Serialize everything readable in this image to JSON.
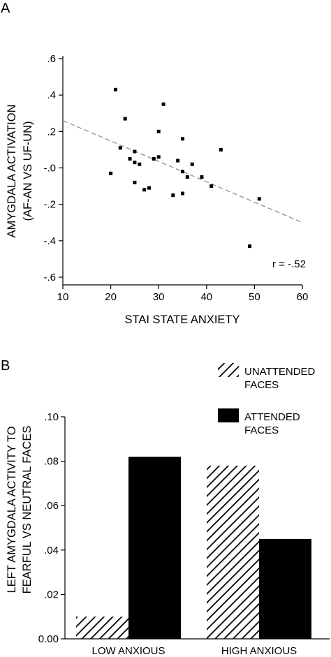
{
  "chart_data": [
    {
      "type": "scatter",
      "panel_label": "A",
      "xlabel": "STAI STATE ANXIETY",
      "ylabel_lines": [
        "AMYGDALA ACTIVATION",
        "(AF-AN VS UF-UN)"
      ],
      "xlim": [
        10,
        60
      ],
      "ylim": [
        -0.6,
        0.6
      ],
      "x_ticks": [
        "10",
        "20",
        "30",
        "40",
        "50",
        "60"
      ],
      "y_ticks": [
        ".6",
        ".4",
        ".2",
        "-.0",
        "-.2",
        "-.4",
        "-.6"
      ],
      "points": [
        {
          "x": 20,
          "y": -0.03
        },
        {
          "x": 21,
          "y": 0.43
        },
        {
          "x": 22,
          "y": 0.11
        },
        {
          "x": 23,
          "y": 0.27
        },
        {
          "x": 24,
          "y": 0.05
        },
        {
          "x": 25,
          "y": 0.09
        },
        {
          "x": 25,
          "y": 0.03
        },
        {
          "x": 25,
          "y": -0.08
        },
        {
          "x": 26,
          "y": 0.02
        },
        {
          "x": 27,
          "y": -0.12
        },
        {
          "x": 28,
          "y": -0.11
        },
        {
          "x": 29,
          "y": 0.05
        },
        {
          "x": 30,
          "y": 0.2
        },
        {
          "x": 30,
          "y": 0.06
        },
        {
          "x": 31,
          "y": 0.35
        },
        {
          "x": 33,
          "y": -0.15
        },
        {
          "x": 34,
          "y": 0.04
        },
        {
          "x": 35,
          "y": 0.16
        },
        {
          "x": 35,
          "y": -0.02
        },
        {
          "x": 35,
          "y": -0.14
        },
        {
          "x": 36,
          "y": -0.05
        },
        {
          "x": 37,
          "y": 0.02
        },
        {
          "x": 39,
          "y": -0.05
        },
        {
          "x": 41,
          "y": -0.1
        },
        {
          "x": 43,
          "y": 0.1
        },
        {
          "x": 49,
          "y": -0.43
        },
        {
          "x": 51,
          "y": -0.17
        }
      ],
      "fit_line": {
        "x": [
          10,
          60
        ],
        "y": [
          0.26,
          -0.3
        ],
        "style": "dashed"
      },
      "annotation": "r = -.52",
      "grid": false
    },
    {
      "type": "bar",
      "panel_label": "B",
      "ylabel_lines": [
        "LEFT AMYGDALA ACTIVITY TO",
        "FEARFUL VS NEUTRAL FACES"
      ],
      "categories": [
        "LOW ANXIOUS",
        "HIGH ANXIOUS"
      ],
      "ylim": [
        0,
        0.1
      ],
      "y_ticks": [
        ".10",
        ".08",
        ".06",
        ".04",
        ".02",
        "0.00"
      ],
      "series": [
        {
          "name_lines": [
            "UNATTENDED",
            "FACES"
          ],
          "values": [
            0.01,
            0.078
          ],
          "fill": "hatched"
        },
        {
          "name_lines": [
            "ATTENDED",
            "FACES"
          ],
          "values": [
            0.082,
            0.045
          ],
          "fill": "#000000"
        }
      ],
      "legend_placement": "top-right",
      "grid": false
    }
  ]
}
